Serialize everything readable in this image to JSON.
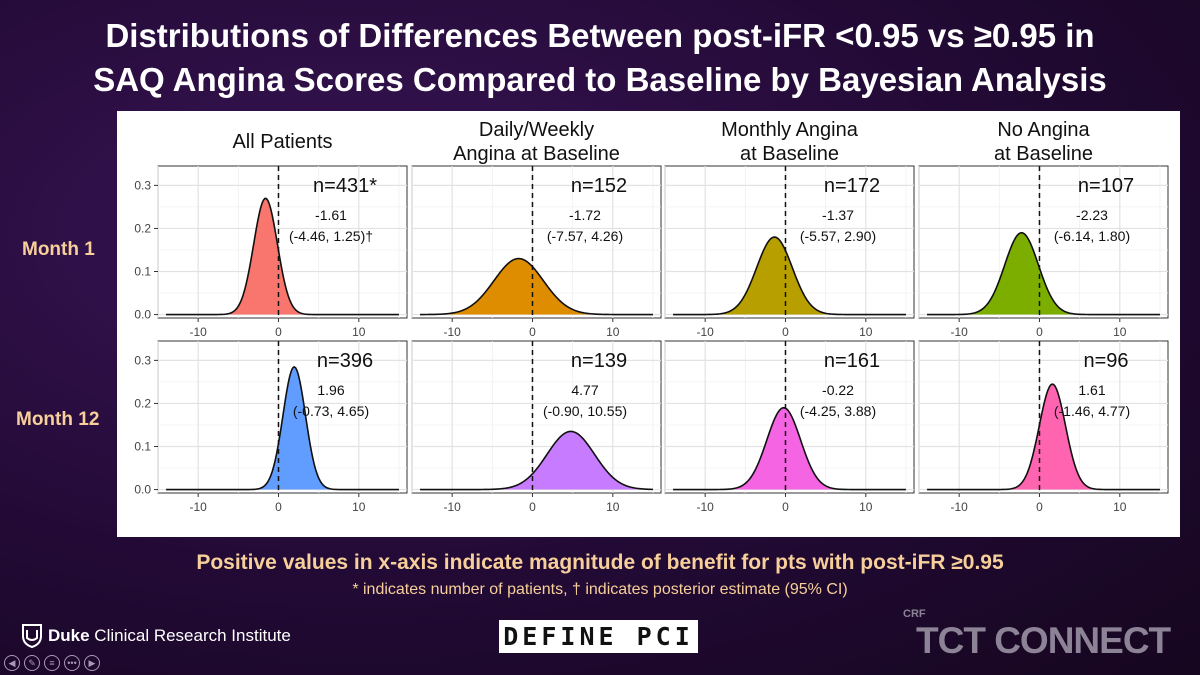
{
  "slide": {
    "title_line1": "Distributions of Differences Between post-iFR <0.95 vs ≥0.95 in",
    "title_line2": "SAQ Angina Scores Compared to Baseline by Bayesian Analysis",
    "footnote_main": "Positive values in x-axis indicate magnitude of benefit for pts with post-iFR ≥0.95",
    "footnote_sub": "* indicates number of patients, † indicates posterior estimate (95% CI)",
    "logo_duke_bold": "Duke",
    "logo_duke_rest": " Clinical Research Institute",
    "logo_define": "DEFINE PCI",
    "logo_crf": "CRF",
    "logo_tct": "TCT CONNECT",
    "nav_icons": [
      "prev-icon",
      "pen-icon",
      "menu-icon",
      "more-icon",
      "next-icon"
    ]
  },
  "chart_data": {
    "type": "area",
    "grid": true,
    "xlim": [
      -15,
      16
    ],
    "ylim": [
      -0.008,
      0.345
    ],
    "xticks": [
      -10,
      0,
      10
    ],
    "yticks": [
      0.0,
      0.1,
      0.2,
      0.3
    ],
    "xtick_labels": [
      "-10",
      "0",
      "10"
    ],
    "ytick_labels": [
      "0.0",
      "0.1",
      "0.2",
      "0.3"
    ],
    "reference_line_x": 0,
    "columns": [
      "All Patients",
      "Daily/Weekly\nAngina at Baseline",
      "Monthly Angina\nat Baseline",
      "No Angina\nat Baseline"
    ],
    "rows": [
      "Month 1",
      "Month 12"
    ],
    "panels": [
      {
        "row": 0,
        "col": 0,
        "n_label": "n=431*",
        "estimate": "-1.61",
        "ci": "(-4.46, 1.25)†",
        "mean": -1.61,
        "peak": 0.27,
        "color": "#f8766d"
      },
      {
        "row": 0,
        "col": 1,
        "n_label": "n=152",
        "estimate": "-1.72",
        "ci": "(-7.57, 4.26)",
        "mean": -1.72,
        "peak": 0.13,
        "color": "#de8c00"
      },
      {
        "row": 0,
        "col": 2,
        "n_label": "n=172",
        "estimate": "-1.37",
        "ci": "(-5.57, 2.90)",
        "mean": -1.37,
        "peak": 0.18,
        "color": "#b79f00"
      },
      {
        "row": 0,
        "col": 3,
        "n_label": "n=107",
        "estimate": "-2.23",
        "ci": "(-6.14, 1.80)",
        "mean": -2.23,
        "peak": 0.19,
        "color": "#7cae00"
      },
      {
        "row": 1,
        "col": 0,
        "n_label": "n=396",
        "estimate": "1.96",
        "ci": "(-0.73, 4.65)",
        "mean": 1.96,
        "peak": 0.285,
        "color": "#619cff"
      },
      {
        "row": 1,
        "col": 1,
        "n_label": "n=139",
        "estimate": "4.77",
        "ci": "(-0.90, 10.55)",
        "mean": 4.77,
        "peak": 0.135,
        "color": "#c77cff"
      },
      {
        "row": 1,
        "col": 2,
        "n_label": "n=161",
        "estimate": "-0.22",
        "ci": "(-4.25, 3.88)",
        "mean": -0.22,
        "peak": 0.19,
        "color": "#f564e3"
      },
      {
        "row": 1,
        "col": 3,
        "n_label": "n=96",
        "estimate": "1.61",
        "ci": "(-1.46, 4.77)",
        "mean": 1.61,
        "peak": 0.245,
        "color": "#ff64b0"
      }
    ]
  }
}
